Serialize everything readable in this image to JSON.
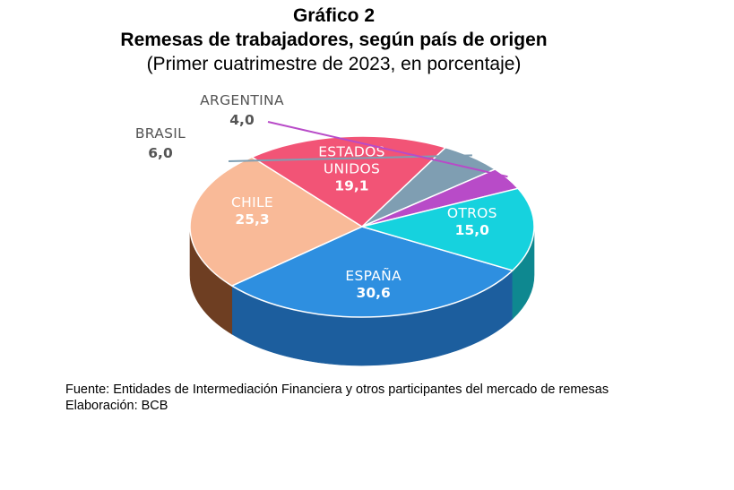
{
  "header": {
    "title": "Gráfico 2",
    "subtitle": "Remesas de trabajadores, según país de origen",
    "note": "(Primer cuatrimestre de 2023, en porcentaje)"
  },
  "chart_data": {
    "type": "pie",
    "style": "3d",
    "unit": "porcentaje",
    "slices": [
      {
        "label": "ESPAÑA",
        "value": 30.6,
        "display": "30,6",
        "color": "#2E8FE0",
        "side_color": "#1C5E9E"
      },
      {
        "label": "CHILE",
        "value": 25.3,
        "display": "25,3",
        "color": "#F9BA98",
        "side_color": "#6E3E22"
      },
      {
        "label": "ESTADOS UNIDOS",
        "label_lines": [
          "ESTADOS",
          "UNIDOS"
        ],
        "value": 19.1,
        "display": "19,1",
        "color": "#F25476",
        "side_color": "#6A1C34"
      },
      {
        "label": "BRASIL",
        "value": 6.0,
        "display": "6,0",
        "color": "#7F9EB2",
        "side_color": "#4D6272"
      },
      {
        "label": "ARGENTINA",
        "value": 4.0,
        "display": "4,0",
        "color": "#B84BC8",
        "side_color": "#6C2C78"
      },
      {
        "label": "OTROS",
        "value": 15.0,
        "display": "15,0",
        "color": "#16D2DE",
        "side_color": "#0E8890"
      }
    ]
  },
  "footer": {
    "source": "Fuente: Entidades de Intermediación Financiera y otros participantes del mercado de remesas",
    "credit": "Elaboración: BCB"
  }
}
